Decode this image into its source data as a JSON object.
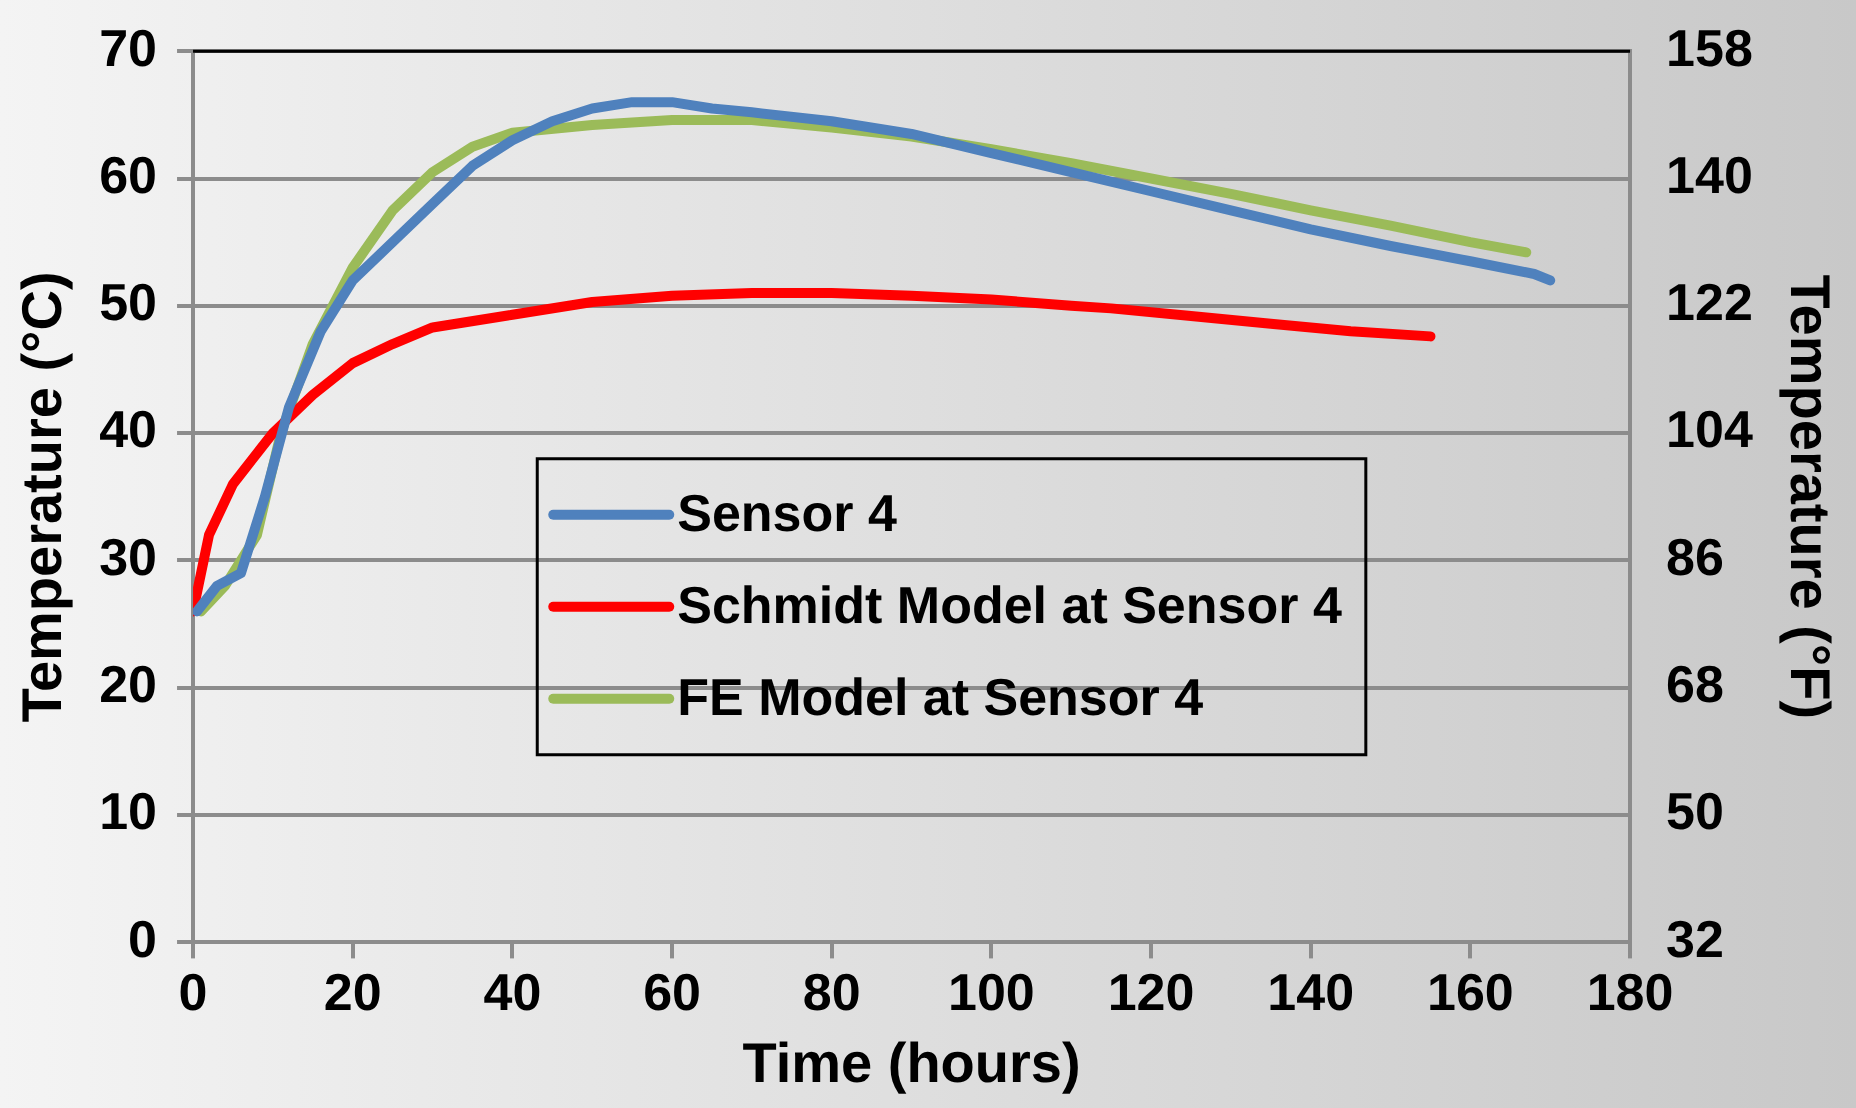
{
  "chart_data": {
    "type": "line",
    "xlabel": "Time (hours)",
    "ylabel": "Temperature (°C)",
    "y2label": "Temperature (°F)",
    "xlim": [
      0,
      180
    ],
    "xticks": [
      0,
      20,
      40,
      60,
      80,
      100,
      120,
      140,
      160,
      180
    ],
    "ylim": [
      0,
      70
    ],
    "yticks": [
      0,
      10,
      20,
      30,
      40,
      50,
      60,
      70
    ],
    "y2lim": [
      32,
      158
    ],
    "y2ticks": [
      32,
      50,
      68,
      86,
      104,
      122,
      140,
      158
    ],
    "grid": "y",
    "legend": "center",
    "marker": "none",
    "line_style": "solid",
    "series": [
      {
        "name": "Sensor 4",
        "color": "#4f81bd",
        "x": [
          0.5,
          3,
          6,
          9,
          12,
          16,
          20,
          25,
          30,
          35,
          40,
          45,
          50,
          55,
          60,
          65,
          70,
          80,
          90,
          100,
          110,
          120,
          130,
          140,
          150,
          160,
          168,
          170
        ],
        "values": [
          26,
          28,
          29,
          35,
          42,
          48,
          52,
          55,
          58,
          61,
          63,
          64.5,
          65.5,
          66,
          66,
          65.5,
          65.2,
          64.5,
          63.5,
          62,
          60.5,
          59,
          57.5,
          56,
          54.7,
          53.5,
          52.5,
          52
        ]
      },
      {
        "name": "Schmidt Model at Sensor 4",
        "color": "#ff0000",
        "x": [
          0,
          2,
          5,
          10,
          15,
          20,
          25,
          30,
          40,
          50,
          60,
          70,
          80,
          90,
          100,
          110,
          115,
          125,
          135,
          145,
          155
        ],
        "values": [
          26,
          32,
          36,
          40,
          43,
          45.5,
          47,
          48.3,
          49.3,
          50.3,
          50.8,
          51,
          51,
          50.8,
          50.5,
          50,
          49.8,
          49.2,
          48.6,
          48,
          47.6
        ]
      },
      {
        "name": "FE Model at Sensor 4",
        "color": "#9bbb59",
        "x": [
          1,
          4,
          8,
          11,
          15,
          20,
          25,
          30,
          35,
          40,
          50,
          60,
          70,
          80,
          90,
          100,
          110,
          120,
          130,
          140,
          150,
          160,
          167
        ],
        "values": [
          26,
          28,
          32,
          40,
          47,
          53,
          57.5,
          60.5,
          62.5,
          63.6,
          64.2,
          64.6,
          64.6,
          64,
          63.3,
          62.3,
          61.2,
          60,
          58.8,
          57.5,
          56.3,
          55,
          54.2
        ]
      }
    ]
  }
}
